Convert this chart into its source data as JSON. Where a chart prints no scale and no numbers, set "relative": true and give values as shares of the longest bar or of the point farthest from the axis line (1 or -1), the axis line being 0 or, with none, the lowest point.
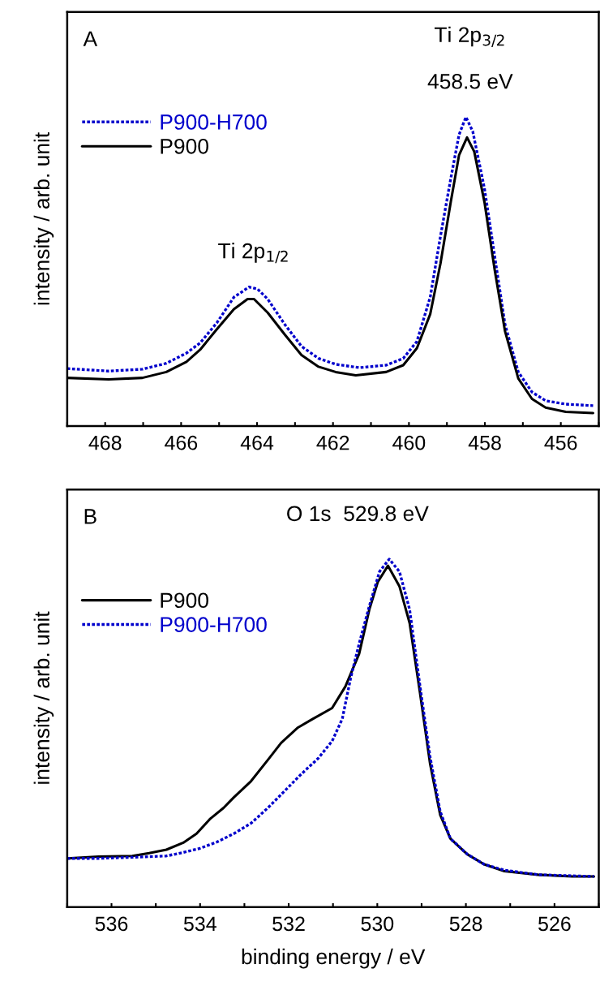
{
  "chart_data": [
    {
      "type": "line",
      "ylabel": "intensity / arb. unit",
      "relative": true,
      "xlim": [
        469,
        455
      ],
      "xticks": [
        {
          "value": 469,
          "label": null
        },
        468,
        {
          "value": 467,
          "label": null
        },
        466,
        {
          "value": 465,
          "label": null
        },
        464,
        {
          "value": 463,
          "label": null
        },
        462,
        {
          "value": 461,
          "label": null
        },
        460,
        {
          "value": 459,
          "label": null
        },
        458,
        {
          "value": 457,
          "label": null
        },
        456,
        {
          "value": 455,
          "label": null
        }
      ],
      "tick_labels": "x",
      "legend": "top left",
      "grid": false,
      "annotations": [
        "A",
        "Ti 2p$_{3/2}$",
        "458.5 eV",
        "Ti 2p$_{1/2}$"
      ],
      "series": [
        {
          "name": "P900-H700",
          "color": "#0000cc",
          "line_style": "dotted",
          "x": [
            469.0,
            467.91,
            467.02,
            466.39,
            465.86,
            465.5,
            465.06,
            464.61,
            464.21,
            463.99,
            463.72,
            463.27,
            462.83,
            462.38,
            461.93,
            461.31,
            460.6,
            460.15,
            459.79,
            459.44,
            459.17,
            458.9,
            458.68,
            458.5,
            458.32,
            458.01,
            457.74,
            457.47,
            457.12,
            456.76,
            456.4,
            455.87,
            455.15
          ],
          "values": [
            0.186,
            0.178,
            0.184,
            0.203,
            0.236,
            0.269,
            0.334,
            0.417,
            0.45,
            0.444,
            0.411,
            0.329,
            0.258,
            0.219,
            0.2,
            0.189,
            0.197,
            0.219,
            0.274,
            0.417,
            0.614,
            0.8,
            0.943,
            1.0,
            0.954,
            0.768,
            0.548,
            0.329,
            0.175,
            0.11,
            0.082,
            0.071,
            0.066
          ]
        },
        {
          "name": "P900",
          "color": "#000000",
          "line_style": "solid",
          "x": [
            469.0,
            467.91,
            467.02,
            466.39,
            465.86,
            465.5,
            465.06,
            464.61,
            464.25,
            464.08,
            463.72,
            463.27,
            462.83,
            462.38,
            461.93,
            461.4,
            460.6,
            460.15,
            459.79,
            459.44,
            459.17,
            458.9,
            458.68,
            458.47,
            458.28,
            458.01,
            457.74,
            457.47,
            457.12,
            456.76,
            456.4,
            455.87,
            455.15
          ],
          "values": [
            0.156,
            0.151,
            0.156,
            0.175,
            0.208,
            0.247,
            0.313,
            0.378,
            0.411,
            0.411,
            0.367,
            0.296,
            0.23,
            0.192,
            0.175,
            0.164,
            0.175,
            0.197,
            0.252,
            0.362,
            0.526,
            0.724,
            0.877,
            0.934,
            0.888,
            0.724,
            0.504,
            0.307,
            0.154,
            0.088,
            0.06,
            0.046,
            0.042
          ]
        }
      ]
    },
    {
      "type": "line",
      "xlabel": "binding energy / eV",
      "ylabel": "intensity / arb. unit",
      "relative": true,
      "xlim": [
        537,
        525
      ],
      "xticks": [
        {
          "value": 537,
          "label": null
        },
        536,
        {
          "value": 535,
          "label": null
        },
        534,
        {
          "value": 533,
          "label": null
        },
        532,
        {
          "value": 531,
          "label": null
        },
        530,
        {
          "value": 529,
          "label": null
        },
        528,
        {
          "value": 527,
          "label": null
        },
        526,
        {
          "value": 525,
          "label": null
        }
      ],
      "tick_labels": "x",
      "legend": "top left",
      "grid": false,
      "annotations": [
        "B",
        "O 1s  529.8 eV"
      ],
      "series": [
        {
          "name": "P900",
          "color": "#000000",
          "line_style": "solid",
          "x": [
            537.0,
            536.29,
            535.53,
            535.15,
            534.76,
            534.38,
            534.08,
            533.77,
            533.47,
            533.24,
            532.85,
            532.47,
            532.17,
            531.79,
            531.48,
            531.02,
            530.72,
            530.41,
            530.18,
            529.99,
            529.76,
            529.5,
            529.27,
            529.04,
            528.81,
            528.58,
            528.35,
            527.97,
            527.59,
            527.13,
            526.37,
            525.6,
            525.11
          ],
          "values": [
            0.14,
            0.145,
            0.147,
            0.155,
            0.165,
            0.185,
            0.211,
            0.254,
            0.285,
            0.315,
            0.362,
            0.423,
            0.472,
            0.516,
            0.539,
            0.572,
            0.634,
            0.728,
            0.855,
            0.934,
            0.981,
            0.922,
            0.816,
            0.619,
            0.413,
            0.265,
            0.197,
            0.152,
            0.123,
            0.103,
            0.093,
            0.088,
            0.088
          ]
        },
        {
          "name": "P900-H700",
          "color": "#0000cc",
          "line_style": "dotted",
          "x": [
            537.0,
            536.29,
            535.53,
            534.76,
            534.38,
            534.0,
            533.62,
            533.24,
            532.85,
            532.47,
            532.09,
            531.71,
            531.33,
            531.02,
            530.79,
            530.6,
            530.41,
            530.18,
            529.95,
            529.73,
            529.5,
            529.27,
            529.04,
            528.81,
            528.58,
            528.35,
            527.97,
            527.59,
            527.13,
            526.37,
            525.6,
            525.11
          ],
          "values": [
            0.14,
            0.14,
            0.143,
            0.147,
            0.157,
            0.169,
            0.187,
            0.211,
            0.241,
            0.285,
            0.334,
            0.383,
            0.428,
            0.477,
            0.541,
            0.659,
            0.757,
            0.865,
            0.964,
            1.0,
            0.964,
            0.855,
            0.639,
            0.433,
            0.275,
            0.197,
            0.152,
            0.123,
            0.106,
            0.093,
            0.09,
            0.088
          ]
        }
      ]
    }
  ]
}
